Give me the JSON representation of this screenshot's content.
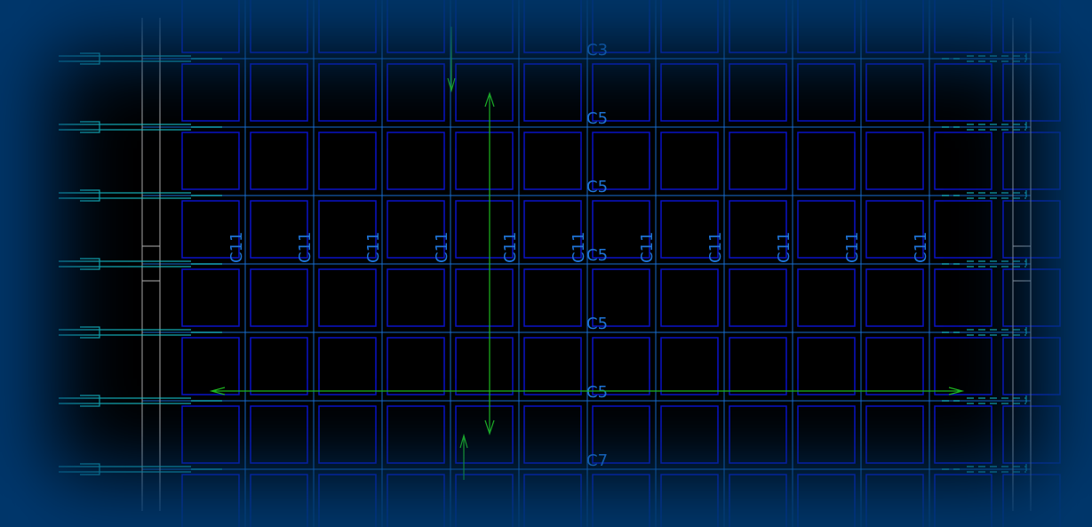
{
  "row_labels": [
    "C3",
    "C5",
    "C5",
    "C5",
    "C5",
    "C5",
    "C7"
  ],
  "column_label": "C11",
  "column_count": 11,
  "colors": {
    "background": "#000000",
    "frame": "#00386e",
    "grid_line": "#1a6fd0",
    "cell": "#0a12c8",
    "boundary": "#b0b0b0",
    "connector": "#18c8d0",
    "dimension": "#1fb81f"
  }
}
